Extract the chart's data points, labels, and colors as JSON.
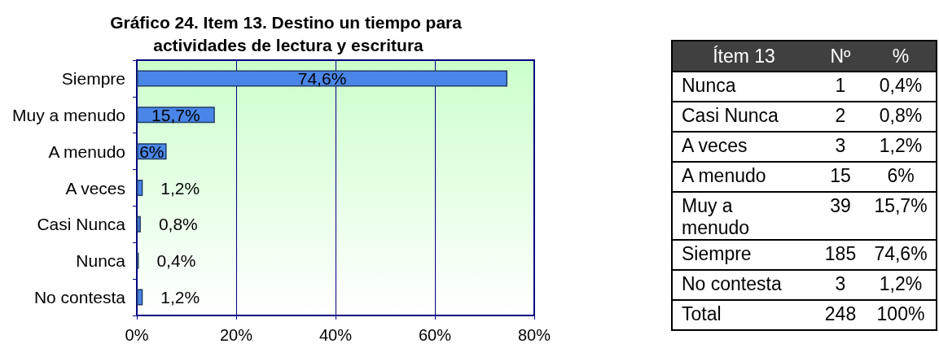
{
  "chart_data": [
    {
      "type": "bar",
      "orientation": "horizontal",
      "title": "Gráfico 24. Item 13. Destino un tiempo para actividades de lectura y escritura",
      "categories": [
        "Siempre",
        "Muy a menudo",
        "A menudo",
        "A veces",
        "Casi Nunca",
        "Nunca",
        "No contesta"
      ],
      "values": [
        74.6,
        15.7,
        6,
        1.2,
        0.8,
        0.4,
        1.2
      ],
      "value_labels": [
        "74,6%",
        "15,7%",
        "6%",
        "1,2%",
        "0,8%",
        "0,4%",
        "1,2%"
      ],
      "color": "#4a86e8",
      "xlim": [
        0,
        80
      ],
      "xticks": [
        {
          "value": 0,
          "label": "0%"
        },
        {
          "value": 20,
          "label": "20%"
        },
        {
          "value": 40,
          "label": "40%"
        },
        {
          "value": 60,
          "label": "60%"
        },
        {
          "value": 80,
          "label": "80%"
        }
      ],
      "grid": "x"
    },
    {
      "type": "other",
      "xlabel": "Ítem 13",
      "categories": [
        "Nunca",
        "Casi Nunca",
        "A veces",
        "A menudo",
        "Muy a menudo",
        "Siempre",
        "No contesta",
        "Total"
      ],
      "data_labels": true,
      "series": [
        {
          "name": "Nº",
          "values": [
            1,
            2,
            3,
            15,
            39,
            185,
            3,
            248
          ]
        },
        {
          "name": "%",
          "values": [
            0.4,
            0.8,
            1.2,
            6,
            15.7,
            74.6,
            1.2,
            100
          ],
          "value_labels": [
            "0,4%",
            "0,8%",
            "1,2%",
            "6%",
            "15,7%",
            "74,6%",
            "1,2%",
            "100%"
          ]
        }
      ]
    }
  ]
}
